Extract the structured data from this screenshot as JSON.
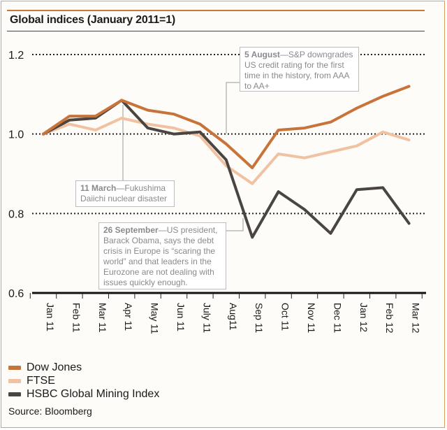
{
  "header": {
    "title": "Global indices (January 2011=1)"
  },
  "colors": {
    "dow": "#c8733a",
    "ftse": "#f0c2a2",
    "hsbc": "#4a4540",
    "grid": "#222222",
    "accent": "#c87a36"
  },
  "chart_data": {
    "type": "line",
    "title": "Global indices (January 2011=1)",
    "xlabel": "",
    "ylabel": "",
    "ylim": [
      0.6,
      1.2
    ],
    "yticks": [
      "1.2",
      "1.0",
      "0.8",
      "0.6"
    ],
    "ytick_values": [
      1.2,
      1.0,
      0.8,
      0.6
    ],
    "categories": [
      "Jan 11",
      "Feb 11",
      "Mar 11",
      "Apr 11",
      "May 11",
      "Jun 11",
      "July 11",
      "Aug11",
      "Sep 11",
      "Oct 11",
      "Nov 11",
      "Dec 11",
      "Jan 12",
      "Feb 12",
      "Mar 12"
    ],
    "series": [
      {
        "name": "Dow Jones",
        "color": "#c8733a",
        "values": [
          1.0,
          1.045,
          1.045,
          1.085,
          1.06,
          1.05,
          1.025,
          0.975,
          0.915,
          1.01,
          1.015,
          1.03,
          1.065,
          1.095,
          1.12
        ]
      },
      {
        "name": "FTSE",
        "color": "#f0c2a2",
        "values": [
          1.0,
          1.025,
          1.01,
          1.04,
          1.025,
          1.015,
          0.995,
          0.92,
          0.875,
          0.95,
          0.94,
          0.955,
          0.97,
          1.005,
          0.985
        ]
      },
      {
        "name": "HSBC Global Mining Index",
        "color": "#4a4540",
        "values": [
          1.0,
          1.035,
          1.04,
          1.085,
          1.015,
          1.0,
          1.005,
          0.935,
          0.74,
          0.855,
          0.81,
          0.75,
          0.86,
          0.865,
          0.775
        ]
      }
    ],
    "annotations": [
      {
        "bold": "5 August",
        "text": "—S&P downgrades US credit rating for the first time in the history, from AAA to AA+"
      },
      {
        "bold": "11 March",
        "text": "—Fukushima Daiichi nuclear disaster"
      },
      {
        "bold": "26 September",
        "text": "—US president, Barack Obama, says the debt crisis in Europe is “scaring the world” and that leaders in the Eurozone are not dealing with issues quickly enough."
      }
    ],
    "legend_position": "bottom-left",
    "grid": true
  },
  "legend": {
    "items": [
      {
        "label": "Dow Jones"
      },
      {
        "label": "FTSE"
      },
      {
        "label": "HSBC Global Mining Index"
      }
    ]
  },
  "footer": {
    "source": "Source: Bloomberg"
  }
}
